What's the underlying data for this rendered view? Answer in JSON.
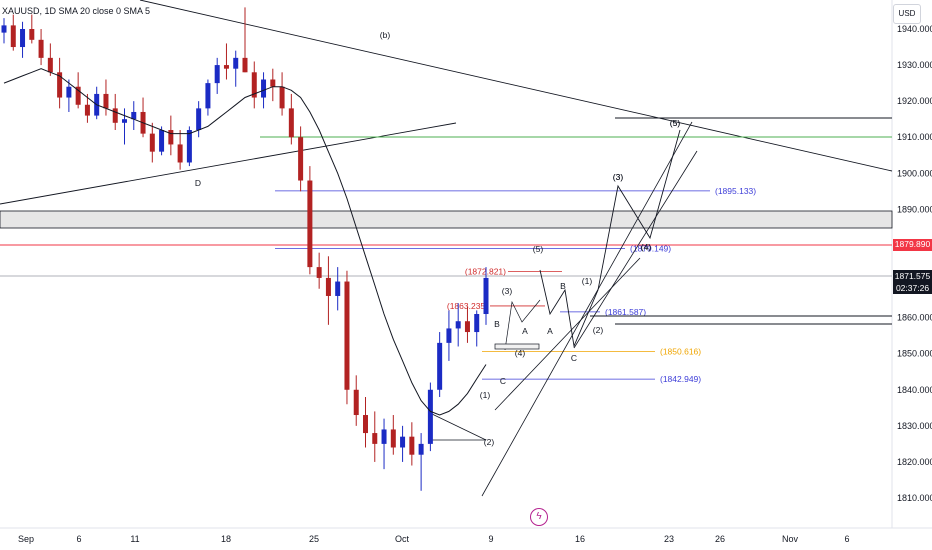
{
  "legend": {
    "text": "XAUUSD, 1D  SMA 20 close 0 SMA 5"
  },
  "currency_button": "USD",
  "current_price": {
    "value": "1871.575",
    "countdown": "02:37:26"
  },
  "red_line_price": "1879.890",
  "colors": {
    "up_candle": "#1b2bc4",
    "down_candle": "#b22222",
    "sma": "#131722",
    "red_line": "#f23645",
    "green_line": "#4caf50",
    "blue_level": "#3d3dd8",
    "orange_level": "#f0a500",
    "grey_zone": "#e6e6e6"
  },
  "chart_data": {
    "type": "candlestick",
    "y_axis": {
      "min": 1805,
      "max": 1945,
      "ticks": [
        "1940.000",
        "1930.000",
        "1920.000",
        "1910.000",
        "1900.000",
        "1890.000",
        "1880.000",
        "1870.000",
        "1860.000",
        "1850.000",
        "1840.000",
        "1830.000",
        "1820.000",
        "1810.000"
      ]
    },
    "x_axis": {
      "labels": [
        "Sep",
        "6",
        "11",
        "18",
        "25",
        "Oct",
        "9",
        "16",
        "23",
        "26",
        "Nov",
        "6"
      ]
    },
    "candles": [
      [
        1939,
        1943,
        1936,
        1941
      ],
      [
        1941,
        1944,
        1934,
        1935
      ],
      [
        1935,
        1942,
        1932,
        1940
      ],
      [
        1940,
        1944,
        1936,
        1937
      ],
      [
        1937,
        1940,
        1930,
        1932
      ],
      [
        1932,
        1936,
        1927,
        1928
      ],
      [
        1928,
        1932,
        1918,
        1921
      ],
      [
        1921,
        1926,
        1917,
        1924
      ],
      [
        1924,
        1928,
        1918,
        1919
      ],
      [
        1919,
        1922,
        1914,
        1916
      ],
      [
        1916,
        1924,
        1915,
        1922
      ],
      [
        1922,
        1926,
        1916,
        1918
      ],
      [
        1918,
        1922,
        1912,
        1914
      ],
      [
        1914,
        1918,
        1908,
        1915
      ],
      [
        1915,
        1920,
        1912,
        1917
      ],
      [
        1917,
        1921,
        1910,
        1911
      ],
      [
        1911,
        1914,
        1903,
        1906
      ],
      [
        1906,
        1913,
        1905,
        1912
      ],
      [
        1912,
        1916,
        1905,
        1908
      ],
      [
        1908,
        1912,
        1901,
        1903
      ],
      [
        1903,
        1913,
        1902,
        1912
      ],
      [
        1912,
        1920,
        1910,
        1918
      ],
      [
        1918,
        1926,
        1916,
        1925
      ],
      [
        1925,
        1932,
        1922,
        1930
      ],
      [
        1930,
        1936,
        1926,
        1929
      ],
      [
        1929,
        1934,
        1924,
        1932
      ],
      [
        1932,
        1946,
        1928,
        1928
      ],
      [
        1928,
        1931,
        1918,
        1921
      ],
      [
        1921,
        1928,
        1918,
        1926
      ],
      [
        1926,
        1929,
        1920,
        1924
      ],
      [
        1924,
        1928,
        1916,
        1918
      ],
      [
        1918,
        1922,
        1908,
        1910
      ],
      [
        1910,
        1913,
        1895,
        1898
      ],
      [
        1898,
        1902,
        1872,
        1874
      ],
      [
        1874,
        1878,
        1868,
        1871
      ],
      [
        1871,
        1877,
        1858,
        1866
      ],
      [
        1866,
        1874,
        1862,
        1870
      ],
      [
        1870,
        1873,
        1836,
        1840
      ],
      [
        1840,
        1844,
        1830,
        1833
      ],
      [
        1833,
        1838,
        1824,
        1828
      ],
      [
        1828,
        1834,
        1820,
        1825
      ],
      [
        1825,
        1832,
        1818,
        1829
      ],
      [
        1829,
        1833,
        1822,
        1824
      ],
      [
        1824,
        1830,
        1820,
        1827
      ],
      [
        1827,
        1831,
        1819,
        1822
      ],
      [
        1822,
        1828,
        1812,
        1825
      ],
      [
        1825,
        1842,
        1823,
        1840
      ],
      [
        1840,
        1856,
        1838,
        1853
      ],
      [
        1853,
        1862,
        1848,
        1857
      ],
      [
        1857,
        1864,
        1852,
        1859
      ],
      [
        1859,
        1863,
        1853,
        1856
      ],
      [
        1856,
        1862,
        1852,
        1861
      ],
      [
        1861,
        1874,
        1858,
        1871
      ]
    ],
    "sma": [
      1925,
      1926,
      1927,
      1928,
      1929,
      1928,
      1927,
      1925,
      1923,
      1921,
      1919,
      1918,
      1917,
      1916,
      1915,
      1914,
      1913,
      1912,
      1911,
      1911,
      1911,
      1912,
      1913,
      1915,
      1917,
      1919,
      1921,
      1922,
      1923,
      1924,
      1924,
      1923,
      1921,
      1917,
      1912,
      1906,
      1900,
      1893,
      1885,
      1877,
      1869,
      1861,
      1854,
      1848,
      1842,
      1837,
      1834,
      1833,
      1834,
      1836,
      1839,
      1843,
      1847
    ],
    "levels": [
      {
        "label": "(1895.133)",
        "price": 1895.133,
        "color": "#3d3dd8"
      },
      {
        "label": "(1879.149)",
        "price": 1879.149,
        "color": "#3d3dd8"
      },
      {
        "label": "(1872.821)",
        "price": 1872.821,
        "color": "#d12b2b"
      },
      {
        "label": "(1863.235)",
        "price": 1863.235,
        "color": "#d12b2b"
      },
      {
        "label": "(1861.587)",
        "price": 1861.587,
        "color": "#3d3dd8"
      },
      {
        "label": "(1850.616)",
        "price": 1850.616,
        "color": "#f0a500"
      },
      {
        "label": "(1842.949)",
        "price": 1842.949,
        "color": "#3d3dd8"
      }
    ],
    "annotations": [
      "(b)",
      "D",
      "(5)",
      "(3)",
      "(4)",
      "(1)",
      "(2)",
      "B",
      "A",
      "C",
      "(5)",
      "(3)",
      "(4)",
      "B",
      "A",
      "C",
      "(1)",
      "(2)",
      "(3)",
      "(4)",
      "(5)"
    ]
  }
}
